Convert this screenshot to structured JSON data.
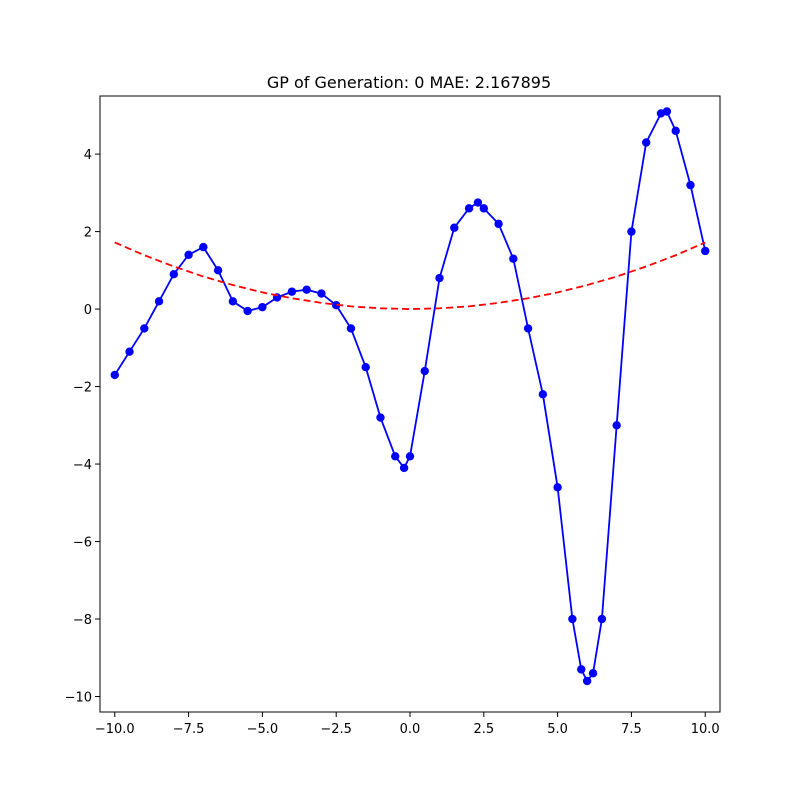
{
  "chart_data": {
    "type": "line",
    "title": "GP of Generation: 0 MAE: 2.167895",
    "xlabel": "",
    "ylabel": "",
    "xlim": [
      -10.5,
      10.5
    ],
    "ylim": [
      -10.4,
      5.5
    ],
    "xticks": [
      -10.0,
      -7.5,
      -5.0,
      -2.5,
      0.0,
      2.5,
      5.0,
      7.5,
      10.0
    ],
    "xtick_labels": [
      "−10.0",
      "−7.5",
      "−5.0",
      "−2.5",
      "0.0",
      "2.5",
      "5.0",
      "7.5",
      "10.0"
    ],
    "yticks": [
      -10,
      -8,
      -6,
      -4,
      -2,
      0,
      2,
      4
    ],
    "ytick_labels": [
      "−10",
      "−8",
      "−6",
      "−4",
      "−2",
      "0",
      "2",
      "4"
    ],
    "grid": false,
    "series": [
      {
        "style": "line-with-circle-markers",
        "color": "#0000ff",
        "x": [
          -10.0,
          -9.5,
          -9.0,
          -8.5,
          -8.0,
          -7.5,
          -7.0,
          -6.5,
          -6.0,
          -5.5,
          -5.0,
          -4.5,
          -4.0,
          -3.5,
          -3.0,
          -2.5,
          -2.0,
          -1.5,
          -1.0,
          -0.5,
          -0.2,
          0.0,
          0.5,
          1.0,
          1.5,
          2.0,
          2.3,
          2.5,
          3.0,
          3.5,
          4.0,
          4.5,
          5.0,
          5.5,
          5.8,
          6.0,
          6.2,
          6.5,
          7.0,
          7.5,
          8.0,
          8.5,
          8.7,
          9.0,
          9.5,
          10.0
        ],
        "y": [
          -1.7,
          -1.1,
          -0.5,
          0.2,
          0.9,
          1.4,
          1.6,
          1.0,
          0.2,
          -0.05,
          0.05,
          0.3,
          0.45,
          0.5,
          0.4,
          0.1,
          -0.5,
          -1.5,
          -2.8,
          -3.8,
          -4.1,
          -3.8,
          -1.6,
          0.8,
          2.1,
          2.6,
          2.75,
          2.6,
          2.2,
          1.3,
          -0.5,
          -2.2,
          -4.6,
          -8.0,
          -9.3,
          -9.6,
          -9.4,
          -8.0,
          -3.0,
          2.0,
          4.3,
          5.05,
          5.1,
          4.6,
          3.2,
          1.5
        ]
      },
      {
        "style": "dashed",
        "color": "#ff0000",
        "x": [
          -10.0,
          -9.0,
          -8.0,
          -7.0,
          -6.0,
          -5.0,
          -4.0,
          -3.0,
          -2.0,
          -1.0,
          0.0,
          1.0,
          2.0,
          3.0,
          4.0,
          5.0,
          6.0,
          7.0,
          8.0,
          9.0,
          10.0
        ],
        "y": [
          1.72,
          1.39,
          1.1,
          0.84,
          0.62,
          0.43,
          0.28,
          0.16,
          0.07,
          0.02,
          0.0,
          0.02,
          0.07,
          0.16,
          0.28,
          0.43,
          0.62,
          0.84,
          1.1,
          1.39,
          1.72
        ]
      }
    ]
  }
}
